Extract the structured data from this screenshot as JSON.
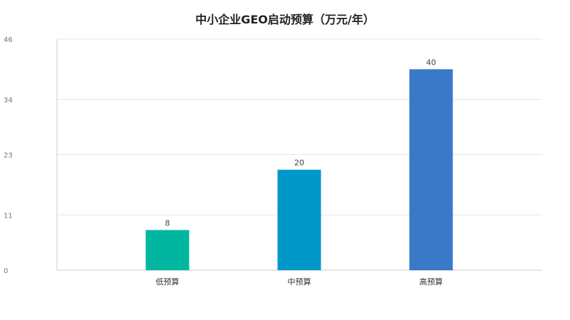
{
  "chart_data": {
    "type": "bar",
    "title": "中小企业GEO启动预算（万元/年）",
    "xlabel": "",
    "ylabel": "",
    "categories": [
      "低预算",
      "中预算",
      "高预算"
    ],
    "values": [
      8,
      20,
      40
    ],
    "data_labels": [
      "8",
      "20",
      "40"
    ],
    "ylim": [
      0,
      46
    ],
    "yticks": [
      0,
      11,
      23,
      34,
      46
    ],
    "ytick_labels": [
      "0",
      "11",
      "23",
      "34",
      "46"
    ],
    "grid": true,
    "legend": "none",
    "colors": [
      "#00b6a0",
      "#0098c8",
      "#3a78c8"
    ]
  }
}
